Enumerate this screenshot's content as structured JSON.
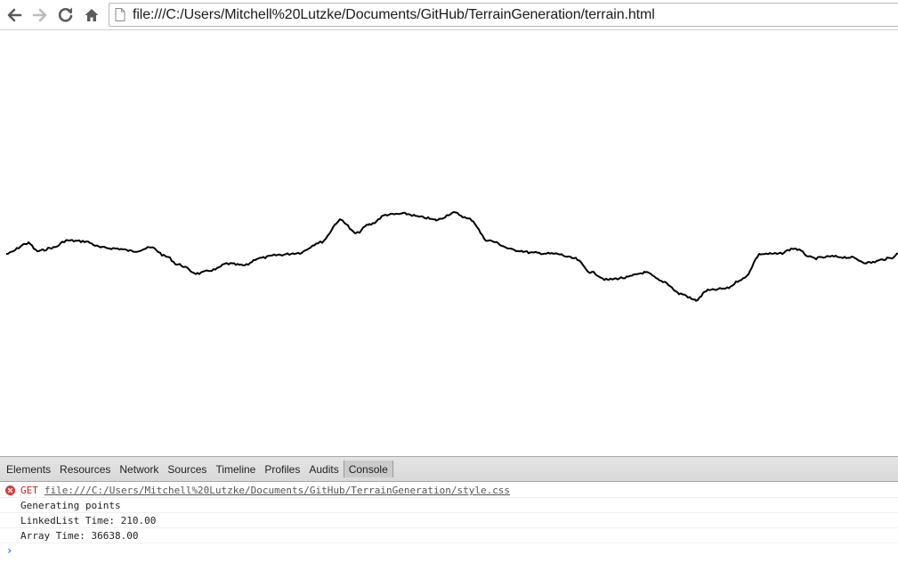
{
  "browser": {
    "url": "file:///C:/Users/Mitchell%20Lutzke/Documents/GitHub/TerrainGeneration/terrain.html",
    "nav_icons": [
      "back-arrow-icon",
      "forward-arrow-icon",
      "reload-icon",
      "home-icon"
    ],
    "page_icon": "page-icon"
  },
  "devtools": {
    "tabs": [
      "Elements",
      "Resources",
      "Network",
      "Sources",
      "Timeline",
      "Profiles",
      "Audits",
      "Console"
    ],
    "selected_tab": "Console",
    "console": {
      "error": {
        "method": "GET",
        "url": "file:///C:/Users/Mitchell%20Lutzke/Documents/GitHub/TerrainGeneration/style.css"
      },
      "messages": [
        "Generating points",
        "LinkedList Time: 210.00",
        "Array Time: 36638.00"
      ],
      "prompt": "›"
    }
  },
  "terrain": {
    "line_color": "#000000"
  },
  "colors": {
    "error": "#cc2222",
    "prompt": "#2a6fd6",
    "tab_bar": "#dcdcdc"
  }
}
